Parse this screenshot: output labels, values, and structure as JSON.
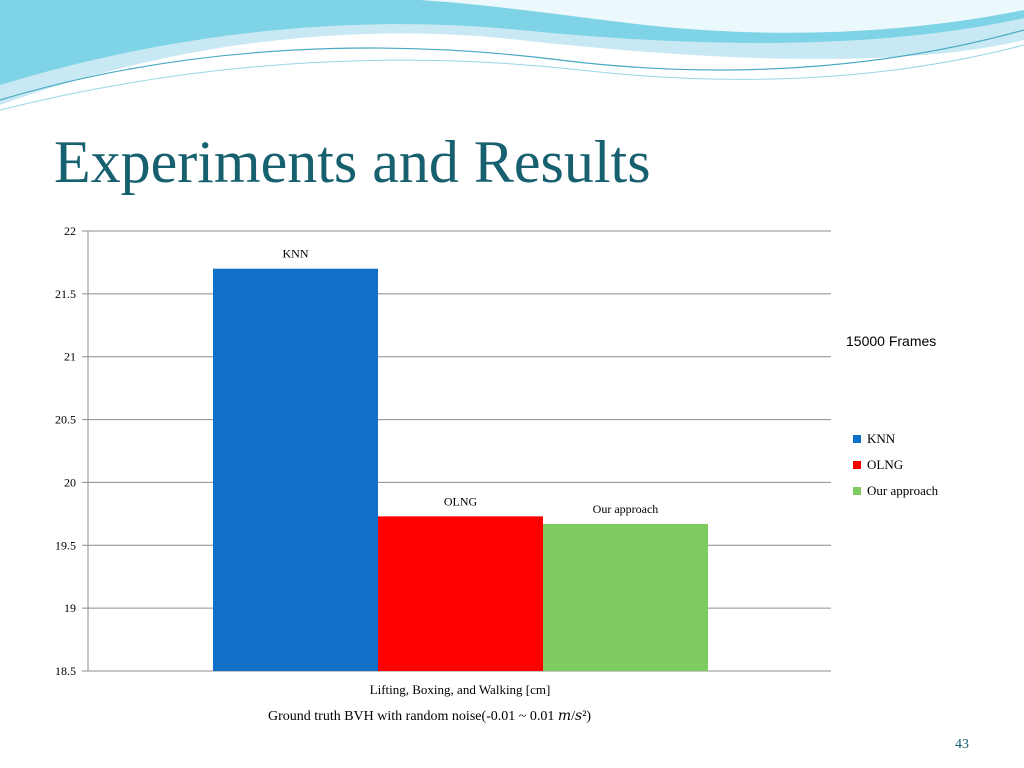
{
  "slide": {
    "title": "Experiments and Results",
    "caption": "Ground truth BVH with random noise(-0.01 ~ 0.01 𝑚/𝑠²)",
    "page_number": "43"
  },
  "chart_data": {
    "type": "bar",
    "title": "15000 Frames",
    "xlabel": "Lifting, Boxing, and Walking [cm]",
    "ylabel": "",
    "ylim": [
      18.5,
      22
    ],
    "yticks": [
      "22",
      "21.5",
      "21",
      "20.5",
      "20",
      "19.5",
      "19",
      "18.5"
    ],
    "grid": true,
    "legend_position": "right",
    "series": [
      {
        "name": "KNN",
        "value": 21.7,
        "color": "#1070c8"
      },
      {
        "name": "OLNG",
        "value": 19.73,
        "color": "#ff0000"
      },
      {
        "name": "Our approach",
        "value": 19.67,
        "color": "#7ecb60"
      }
    ]
  }
}
